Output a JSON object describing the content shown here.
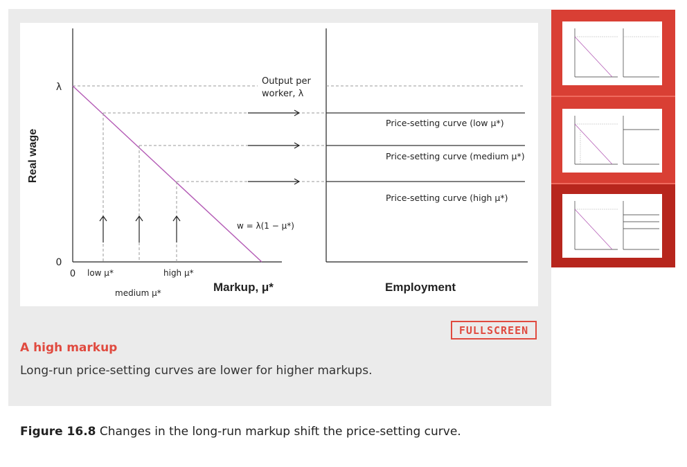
{
  "figure": {
    "left_label": "Real wage",
    "lambda_label": "λ",
    "zero_y_label": "0",
    "zero_x_label": "0",
    "output_label_line1": "Output per",
    "output_label_line2": "worker, λ",
    "wage_equation": "w = λ(1 − μ*)",
    "x_axis_title": "Markup, μ*",
    "right_axis_title": "Employment",
    "markup_ticks": {
      "low": "low μ*",
      "medium": "medium μ*",
      "high": "high μ*"
    },
    "curves": [
      "Price-setting curve (low μ*)",
      "Price-setting curve (medium μ*)",
      "Price-setting curve (high μ*)"
    ]
  },
  "step": {
    "title": "A high markup",
    "description": "Long-run price-setting curves are lower for higher markups."
  },
  "fullscreen_label": "FULLSCREEN",
  "caption": {
    "label": "Figure 16.8",
    "text": " Changes in the long-run markup shift the price-setting curve."
  },
  "colors": {
    "accent": "#e04a3f",
    "wage_line": "#b35ab5",
    "thumb_bg": "#d93f34",
    "thumb_active": "#b7261d"
  },
  "thumbnails": [
    {
      "name": "step-1",
      "active": false
    },
    {
      "name": "step-2",
      "active": false
    },
    {
      "name": "step-3",
      "active": true
    }
  ]
}
